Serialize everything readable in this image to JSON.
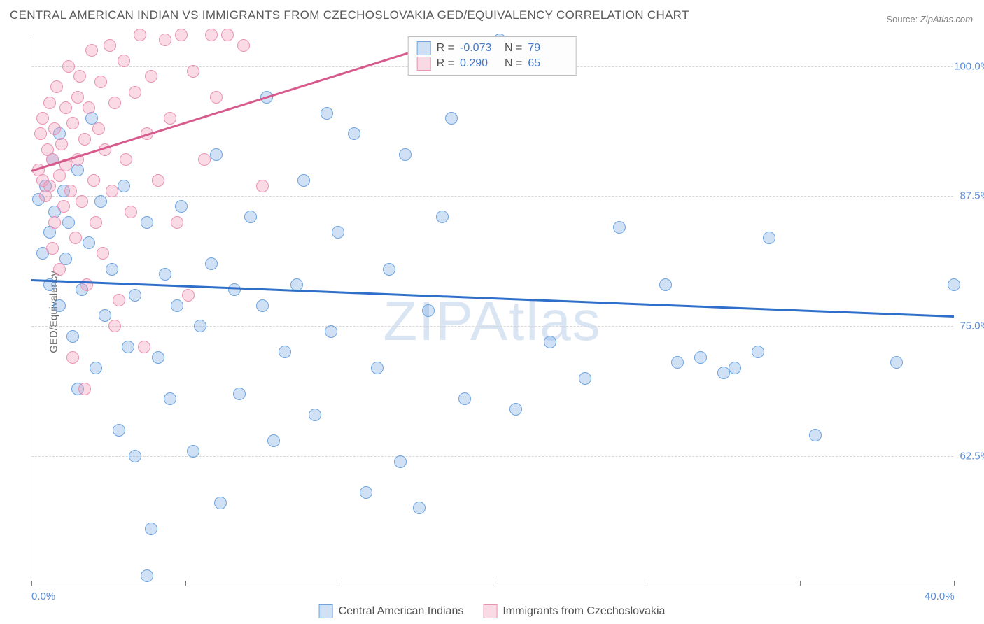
{
  "title": "CENTRAL AMERICAN INDIAN VS IMMIGRANTS FROM CZECHOSLOVAKIA GED/EQUIVALENCY CORRELATION CHART",
  "source_label": "Source:",
  "source_value": "ZipAtlas.com",
  "watermark": "ZIPAtlas",
  "yaxis_title": "GED/Equivalency",
  "chart": {
    "type": "scatter",
    "xlim": [
      0,
      40
    ],
    "ylim": [
      50,
      103
    ],
    "xticks_minor": [
      0,
      6.67,
      13.33,
      20,
      26.67,
      33.33,
      40
    ],
    "xtick_labels": {
      "0": "0.0%",
      "40": "40.0%"
    },
    "yticks": [
      62.5,
      75.0,
      87.5,
      100.0
    ],
    "ytick_labels": [
      "62.5%",
      "75.0%",
      "87.5%",
      "100.0%"
    ],
    "grid_color": "#d8d8d8",
    "axis_color": "#808080",
    "background_color": "#ffffff",
    "marker_radius": 9,
    "marker_stroke_width": 1.2,
    "trend_width": 2.5
  },
  "series": [
    {
      "name": "Central American Indians",
      "color_fill": "rgba(120,170,230,0.35)",
      "color_stroke": "#6ea5df",
      "trend_color": "#2f6fc9",
      "R": "-0.073",
      "N": "79",
      "trend": {
        "x0": 0,
        "y0": 79.5,
        "x1": 40,
        "y1": 76.0
      },
      "points": [
        [
          0.3,
          87.2
        ],
        [
          0.5,
          82.0
        ],
        [
          0.6,
          88.5
        ],
        [
          0.8,
          84.0
        ],
        [
          0.8,
          79.0
        ],
        [
          0.9,
          91.0
        ],
        [
          1.0,
          86.0
        ],
        [
          1.2,
          93.5
        ],
        [
          1.2,
          77.0
        ],
        [
          1.4,
          88.0
        ],
        [
          1.5,
          81.5
        ],
        [
          1.6,
          85.0
        ],
        [
          1.8,
          74.0
        ],
        [
          2.0,
          90.0
        ],
        [
          2.0,
          69.0
        ],
        [
          2.2,
          78.5
        ],
        [
          2.5,
          83.0
        ],
        [
          2.6,
          95.0
        ],
        [
          2.8,
          71.0
        ],
        [
          3.0,
          87.0
        ],
        [
          3.2,
          76.0
        ],
        [
          3.5,
          80.5
        ],
        [
          3.8,
          65.0
        ],
        [
          4.0,
          88.5
        ],
        [
          4.2,
          73.0
        ],
        [
          4.5,
          78.0
        ],
        [
          4.5,
          62.5
        ],
        [
          5.0,
          85.0
        ],
        [
          5.2,
          55.5
        ],
        [
          5.5,
          72.0
        ],
        [
          5.8,
          80.0
        ],
        [
          6.0,
          68.0
        ],
        [
          6.3,
          77.0
        ],
        [
          6.5,
          86.5
        ],
        [
          7.0,
          63.0
        ],
        [
          7.3,
          75.0
        ],
        [
          7.8,
          81.0
        ],
        [
          8.0,
          91.5
        ],
        [
          8.2,
          58.0
        ],
        [
          8.8,
          78.5
        ],
        [
          9.0,
          68.5
        ],
        [
          9.5,
          85.5
        ],
        [
          10.0,
          77.0
        ],
        [
          10.2,
          97.0
        ],
        [
          10.5,
          64.0
        ],
        [
          11.0,
          72.5
        ],
        [
          11.5,
          79.0
        ],
        [
          11.8,
          89.0
        ],
        [
          12.3,
          66.5
        ],
        [
          12.8,
          95.5
        ],
        [
          13.0,
          74.5
        ],
        [
          13.3,
          84.0
        ],
        [
          14.0,
          93.5
        ],
        [
          14.5,
          59.0
        ],
        [
          15.0,
          71.0
        ],
        [
          15.5,
          80.5
        ],
        [
          16.0,
          62.0
        ],
        [
          16.2,
          91.5
        ],
        [
          16.8,
          57.5
        ],
        [
          17.2,
          76.5
        ],
        [
          17.8,
          85.5
        ],
        [
          18.2,
          95.0
        ],
        [
          18.8,
          68.0
        ],
        [
          20.3,
          102.5
        ],
        [
          21.0,
          67.0
        ],
        [
          22.5,
          73.5
        ],
        [
          24.0,
          70.0
        ],
        [
          25.5,
          84.5
        ],
        [
          27.5,
          79.0
        ],
        [
          28.0,
          71.5
        ],
        [
          29.0,
          72.0
        ],
        [
          30.0,
          70.5
        ],
        [
          30.5,
          71.0
        ],
        [
          31.5,
          72.5
        ],
        [
          32.0,
          83.5
        ],
        [
          34.0,
          64.5
        ],
        [
          37.5,
          71.5
        ],
        [
          40.0,
          79.0
        ],
        [
          5.0,
          51.0
        ]
      ]
    },
    {
      "name": "Immigrants from Czechoslovakia",
      "color_fill": "rgba(240,150,180,0.35)",
      "color_stroke": "#e993b4",
      "trend_color": "#d65a8c",
      "R": "0.290",
      "N": "65",
      "trend": {
        "x0": 0,
        "y0": 90.0,
        "x1": 18,
        "y1": 102.5
      },
      "points": [
        [
          0.3,
          90.0
        ],
        [
          0.4,
          93.5
        ],
        [
          0.5,
          89.0
        ],
        [
          0.5,
          95.0
        ],
        [
          0.6,
          87.5
        ],
        [
          0.7,
          92.0
        ],
        [
          0.8,
          88.5
        ],
        [
          0.8,
          96.5
        ],
        [
          0.9,
          91.0
        ],
        [
          1.0,
          85.0
        ],
        [
          1.0,
          94.0
        ],
        [
          1.1,
          98.0
        ],
        [
          1.2,
          89.5
        ],
        [
          1.3,
          92.5
        ],
        [
          1.4,
          86.5
        ],
        [
          1.5,
          96.0
        ],
        [
          1.5,
          90.5
        ],
        [
          1.6,
          100.0
        ],
        [
          1.7,
          88.0
        ],
        [
          1.8,
          94.5
        ],
        [
          1.9,
          83.5
        ],
        [
          2.0,
          97.0
        ],
        [
          2.0,
          91.0
        ],
        [
          2.1,
          99.0
        ],
        [
          2.2,
          87.0
        ],
        [
          2.3,
          93.0
        ],
        [
          2.4,
          79.0
        ],
        [
          2.5,
          96.0
        ],
        [
          2.6,
          101.5
        ],
        [
          2.7,
          89.0
        ],
        [
          2.8,
          85.0
        ],
        [
          2.9,
          94.0
        ],
        [
          3.0,
          98.5
        ],
        [
          3.1,
          82.0
        ],
        [
          3.2,
          92.0
        ],
        [
          3.4,
          102.0
        ],
        [
          3.5,
          88.0
        ],
        [
          3.6,
          96.5
        ],
        [
          3.8,
          77.5
        ],
        [
          4.0,
          100.5
        ],
        [
          4.1,
          91.0
        ],
        [
          4.3,
          86.0
        ],
        [
          4.5,
          97.5
        ],
        [
          4.7,
          103.0
        ],
        [
          4.9,
          73.0
        ],
        [
          5.0,
          93.5
        ],
        [
          5.2,
          99.0
        ],
        [
          5.5,
          89.0
        ],
        [
          5.8,
          102.5
        ],
        [
          6.0,
          95.0
        ],
        [
          6.3,
          85.0
        ],
        [
          6.5,
          103.0
        ],
        [
          6.8,
          78.0
        ],
        [
          7.0,
          99.5
        ],
        [
          7.5,
          91.0
        ],
        [
          7.8,
          103.0
        ],
        [
          8.0,
          97.0
        ],
        [
          8.5,
          103.0
        ],
        [
          9.2,
          102.0
        ],
        [
          10.0,
          88.5
        ],
        [
          2.3,
          69.0
        ],
        [
          1.8,
          72.0
        ],
        [
          3.6,
          75.0
        ],
        [
          1.2,
          80.5
        ],
        [
          0.9,
          82.5
        ]
      ]
    }
  ],
  "legend_bottom": [
    "Central American Indians",
    "Immigrants from Czechoslovakia"
  ]
}
